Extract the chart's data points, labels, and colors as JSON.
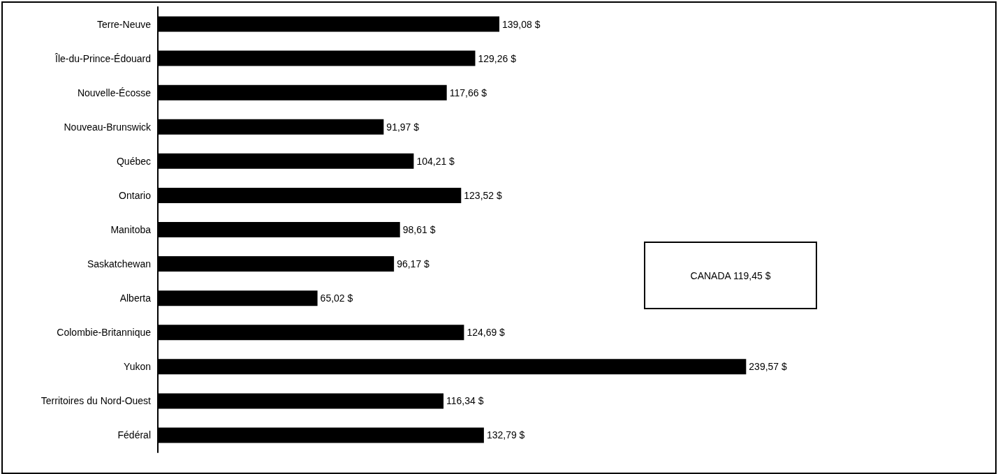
{
  "chart_data": {
    "type": "bar",
    "orientation": "horizontal",
    "categories": [
      "Terre-Neuve",
      "Île-du-Prince-Édouard",
      "Nouvelle-Écosse",
      "Nouveau-Brunswick",
      "Québec",
      "Ontario",
      "Manitoba",
      "Saskatchewan",
      "Alberta",
      "Colombie-Britannique",
      "Yukon",
      "Territoires du Nord-Ouest",
      "Fédéral"
    ],
    "values": [
      139.08,
      129.26,
      117.66,
      91.97,
      104.21,
      123.52,
      98.61,
      96.17,
      65.02,
      124.69,
      239.57,
      116.34,
      132.79
    ],
    "value_labels": [
      "139,08 $",
      "129,26 $",
      "117,66 $",
      "91,97 $",
      "104,21 $",
      "123,52 $",
      "98,61 $",
      "96,17 $",
      "65,02 $",
      "124,69 $",
      "239,57 $",
      "116,34 $",
      "132,79 $"
    ],
    "color": "#000000",
    "annotations": [
      "CANADA 119,45 $"
    ]
  }
}
